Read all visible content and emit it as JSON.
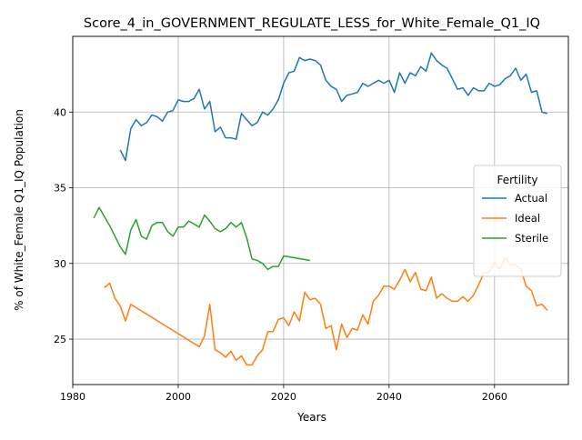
{
  "chart_data": {
    "type": "line",
    "title": "Score_4_in_GOVERNMENT_REGULATE_LESS_for_White_Female_Q1_IQ",
    "xlabel": "Years",
    "ylabel": "% of White_Female Q1_IQ Population",
    "xlim": [
      1980,
      2074
    ],
    "ylim": [
      22.0,
      45.0
    ],
    "xticks": [
      1980,
      2000,
      2020,
      2040,
      2060
    ],
    "yticks": [
      25,
      30,
      35,
      40
    ],
    "grid": true,
    "legend": {
      "title": "Fertility",
      "position": "center-right"
    },
    "series": [
      {
        "name": "Actual",
        "color": "#1f77b4",
        "points": [
          [
            1989,
            37.5
          ],
          [
            1990,
            36.8
          ],
          [
            1991,
            38.9
          ],
          [
            1992,
            39.5
          ],
          [
            1993,
            39.1
          ],
          [
            1994,
            39.3
          ],
          [
            1995,
            39.8
          ],
          [
            1996,
            39.7
          ],
          [
            1997,
            39.4
          ],
          [
            1998,
            40.0
          ],
          [
            1999,
            40.1
          ],
          [
            2000,
            40.8
          ],
          [
            2001,
            40.7
          ],
          [
            2002,
            40.7
          ],
          [
            2003,
            40.9
          ],
          [
            2004,
            41.5
          ],
          [
            2005,
            40.2
          ],
          [
            2006,
            40.7
          ],
          [
            2007,
            38.7
          ],
          [
            2008,
            39.0
          ],
          [
            2009,
            38.3
          ],
          [
            2010,
            38.3
          ],
          [
            2011,
            38.2
          ],
          [
            2012,
            39.9
          ],
          [
            2013,
            39.5
          ],
          [
            2014,
            39.1
          ],
          [
            2015,
            39.3
          ],
          [
            2016,
            40.0
          ],
          [
            2017,
            39.8
          ],
          [
            2018,
            40.2
          ],
          [
            2019,
            40.8
          ],
          [
            2020,
            41.9
          ],
          [
            2021,
            42.6
          ],
          [
            2022,
            42.7
          ],
          [
            2023,
            43.6
          ],
          [
            2024,
            43.4
          ],
          [
            2025,
            43.5
          ],
          [
            2026,
            43.4
          ],
          [
            2027,
            43.1
          ],
          [
            2028,
            42.1
          ],
          [
            2029,
            41.7
          ],
          [
            2030,
            41.5
          ],
          [
            2031,
            40.7
          ],
          [
            2032,
            41.1
          ],
          [
            2033,
            41.2
          ],
          [
            2034,
            41.3
          ],
          [
            2035,
            41.9
          ],
          [
            2036,
            41.7
          ],
          [
            2037,
            41.9
          ],
          [
            2038,
            42.1
          ],
          [
            2039,
            41.9
          ],
          [
            2040,
            42.1
          ],
          [
            2041,
            41.3
          ],
          [
            2042,
            42.6
          ],
          [
            2043,
            41.9
          ],
          [
            2044,
            42.6
          ],
          [
            2045,
            42.4
          ],
          [
            2046,
            43.0
          ],
          [
            2047,
            42.7
          ],
          [
            2048,
            43.9
          ],
          [
            2049,
            43.4
          ],
          [
            2050,
            43.1
          ],
          [
            2051,
            42.9
          ],
          [
            2052,
            42.2
          ],
          [
            2053,
            41.5
          ],
          [
            2054,
            41.6
          ],
          [
            2055,
            41.1
          ],
          [
            2056,
            41.6
          ],
          [
            2057,
            41.4
          ],
          [
            2058,
            41.4
          ],
          [
            2059,
            41.9
          ],
          [
            2060,
            41.7
          ],
          [
            2061,
            41.8
          ],
          [
            2062,
            42.2
          ],
          [
            2063,
            42.4
          ],
          [
            2064,
            42.9
          ],
          [
            2065,
            42.1
          ],
          [
            2066,
            42.5
          ],
          [
            2067,
            41.3
          ],
          [
            2068,
            41.4
          ],
          [
            2069,
            40.0
          ],
          [
            2070,
            39.9
          ]
        ]
      },
      {
        "name": "Ideal",
        "color": "#ff7f0e",
        "points": [
          [
            1986,
            28.4
          ],
          [
            1987,
            28.7
          ],
          [
            1988,
            27.7
          ],
          [
            1989,
            27.2
          ],
          [
            1990,
            26.2
          ],
          [
            1991,
            27.3
          ],
          [
            2004,
            24.5
          ],
          [
            2005,
            25.2
          ],
          [
            2006,
            27.3
          ],
          [
            2007,
            24.3
          ],
          [
            2008,
            24.1
          ],
          [
            2009,
            23.8
          ],
          [
            2010,
            24.2
          ],
          [
            2011,
            23.6
          ],
          [
            2012,
            23.9
          ],
          [
            2013,
            23.3
          ],
          [
            2014,
            23.3
          ],
          [
            2015,
            23.9
          ],
          [
            2016,
            24.3
          ],
          [
            2017,
            25.5
          ],
          [
            2018,
            25.5
          ],
          [
            2019,
            26.3
          ],
          [
            2020,
            26.4
          ],
          [
            2021,
            25.9
          ],
          [
            2022,
            26.8
          ],
          [
            2023,
            26.2
          ],
          [
            2024,
            28.1
          ],
          [
            2025,
            27.6
          ],
          [
            2026,
            27.7
          ],
          [
            2027,
            27.3
          ],
          [
            2028,
            25.7
          ],
          [
            2029,
            25.9
          ],
          [
            2030,
            24.3
          ],
          [
            2031,
            26.0
          ],
          [
            2032,
            25.1
          ],
          [
            2033,
            25.7
          ],
          [
            2034,
            25.6
          ],
          [
            2035,
            26.6
          ],
          [
            2036,
            26.0
          ],
          [
            2037,
            27.5
          ],
          [
            2038,
            27.9
          ],
          [
            2039,
            28.5
          ],
          [
            2040,
            28.5
          ],
          [
            2041,
            28.3
          ],
          [
            2042,
            28.9
          ],
          [
            2043,
            29.6
          ],
          [
            2044,
            28.8
          ],
          [
            2045,
            29.4
          ],
          [
            2046,
            28.3
          ],
          [
            2047,
            28.2
          ],
          [
            2048,
            29.1
          ],
          [
            2049,
            27.7
          ],
          [
            2050,
            28.0
          ],
          [
            2051,
            27.7
          ],
          [
            2052,
            27.5
          ],
          [
            2053,
            27.5
          ],
          [
            2054,
            27.8
          ],
          [
            2055,
            27.5
          ],
          [
            2056,
            27.9
          ],
          [
            2057,
            28.6
          ],
          [
            2058,
            29.4
          ],
          [
            2059,
            29.4
          ],
          [
            2060,
            30.1
          ],
          [
            2061,
            29.6
          ],
          [
            2062,
            30.4
          ],
          [
            2063,
            29.9
          ],
          [
            2064,
            29.9
          ],
          [
            2065,
            29.6
          ],
          [
            2066,
            28.5
          ],
          [
            2067,
            28.2
          ],
          [
            2068,
            27.2
          ],
          [
            2069,
            27.3
          ],
          [
            2070,
            26.9
          ]
        ]
      },
      {
        "name": "Sterile",
        "color": "#2ca02c",
        "points": [
          [
            1984,
            33.0
          ],
          [
            1985,
            33.7
          ],
          [
            1986,
            33.1
          ],
          [
            1987,
            32.5
          ],
          [
            1988,
            31.8
          ],
          [
            1989,
            31.1
          ],
          [
            1990,
            30.6
          ],
          [
            1991,
            32.2
          ],
          [
            1992,
            32.9
          ],
          [
            1993,
            31.8
          ],
          [
            1994,
            31.6
          ],
          [
            1995,
            32.5
          ],
          [
            1996,
            32.7
          ],
          [
            1997,
            32.7
          ],
          [
            1998,
            32.1
          ],
          [
            1999,
            31.8
          ],
          [
            2000,
            32.4
          ],
          [
            2001,
            32.4
          ],
          [
            2002,
            32.8
          ],
          [
            2003,
            32.6
          ],
          [
            2004,
            32.4
          ],
          [
            2005,
            33.2
          ],
          [
            2006,
            32.8
          ],
          [
            2007,
            32.3
          ],
          [
            2008,
            32.1
          ],
          [
            2009,
            32.3
          ],
          [
            2010,
            32.7
          ],
          [
            2011,
            32.4
          ],
          [
            2012,
            32.7
          ],
          [
            2013,
            31.7
          ],
          [
            2014,
            30.3
          ],
          [
            2015,
            30.2
          ],
          [
            2016,
            30.0
          ],
          [
            2017,
            29.6
          ],
          [
            2018,
            29.8
          ],
          [
            2019,
            29.8
          ],
          [
            2020,
            30.5
          ],
          [
            2025,
            30.2
          ]
        ]
      }
    ]
  }
}
